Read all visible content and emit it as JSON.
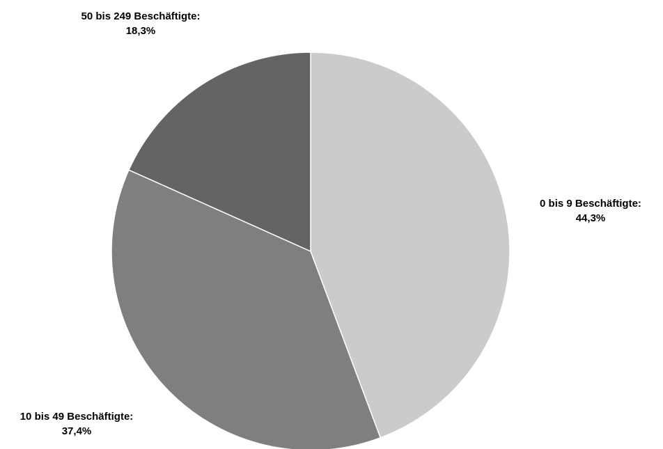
{
  "chart_data": {
    "type": "pie",
    "slices": [
      {
        "name": "0 bis 9 Beschäftigte",
        "value": 44.3,
        "value_label": "44,3%",
        "color": "#cbcbcb"
      },
      {
        "name": "10 bis 49 Beschäftigte",
        "value": 37.4,
        "value_label": "37,4%",
        "color": "#7f7f7f"
      },
      {
        "name": "50 bis 249 Beschäftigte",
        "value": 18.3,
        "value_label": "18,3%",
        "color": "#646464"
      }
    ],
    "start_angle": "12 o'clock",
    "direction": "clockwise",
    "slice_border_color": "#ffffff",
    "label_separator": ":"
  }
}
